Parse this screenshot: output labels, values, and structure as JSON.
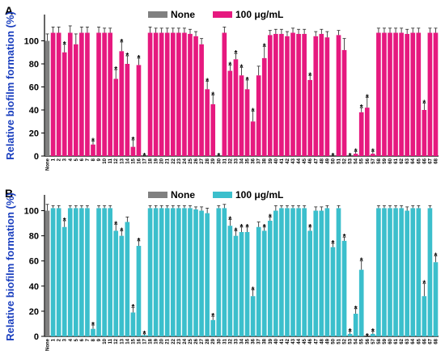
{
  "chart_data": [
    {
      "type": "bar",
      "panel_label": "A",
      "ylabel": "Relative biofilm formation (%)",
      "ylim": [
        0,
        120
      ],
      "yticks": [
        0,
        20,
        40,
        60,
        80,
        100
      ],
      "legend": [
        {
          "name": "None",
          "color": "#808080"
        },
        {
          "name": "100 μg/mL",
          "color": "#e6197f"
        }
      ],
      "legend_position": "top-center",
      "categories": [
        "None",
        "1",
        "2",
        "3",
        "4",
        "5",
        "6",
        "7",
        "8",
        "9",
        "10",
        "11",
        "12",
        "13",
        "14",
        "15",
        "16",
        "17",
        "18",
        "19",
        "20",
        "21",
        "22",
        "23",
        "24",
        "25",
        "26",
        "27",
        "28",
        "29",
        "30",
        "31",
        "32",
        "33",
        "34",
        "35",
        "36",
        "37",
        "38",
        "39",
        "40",
        "41",
        "42",
        "43",
        "44",
        "45",
        "46",
        "47",
        "48",
        "49",
        "50",
        "51",
        "52",
        "53",
        "54",
        "55",
        "56",
        "57",
        "58",
        "59",
        "60",
        "61",
        "62",
        "63",
        "64",
        "65",
        "66",
        "67",
        "68"
      ],
      "series": [
        {
          "name": "100 μg/mL",
          "color": "#e6197f",
          "values": [
            100,
            107,
            107,
            90,
            107,
            97,
            107,
            107,
            10,
            107,
            107,
            107,
            67,
            91,
            80,
            8,
            79,
            0,
            107,
            107,
            107,
            107,
            107,
            107,
            107,
            106,
            104,
            97,
            58,
            45,
            0,
            107,
            74,
            84,
            70,
            58,
            30,
            70,
            85,
            105,
            106,
            106,
            104,
            107,
            106,
            106,
            66,
            104,
            106,
            103,
            0,
            105,
            92,
            0,
            2,
            38,
            42,
            2,
            107,
            107,
            107,
            107,
            107,
            106,
            107,
            107,
            40,
            107,
            107
          ],
          "errors": [
            6,
            5,
            5,
            7,
            6,
            9,
            5,
            5,
            3,
            5,
            4,
            4,
            8,
            8,
            7,
            6,
            6,
            0,
            5,
            4,
            4,
            4,
            4,
            4,
            4,
            4,
            4,
            5,
            7,
            8,
            0,
            5,
            5,
            5,
            7,
            8,
            9,
            8,
            10,
            4,
            4,
            4,
            4,
            4,
            4,
            4,
            4,
            4,
            4,
            5,
            0,
            4,
            10,
            0,
            2,
            4,
            9,
            2,
            4,
            4,
            4,
            4,
            4,
            4,
            4,
            4,
            6,
            4,
            4
          ],
          "significant": [
            false,
            false,
            false,
            true,
            false,
            false,
            false,
            false,
            true,
            false,
            false,
            false,
            true,
            true,
            true,
            true,
            true,
            true,
            false,
            false,
            false,
            false,
            false,
            false,
            false,
            false,
            false,
            false,
            true,
            true,
            true,
            false,
            true,
            true,
            true,
            true,
            true,
            false,
            true,
            false,
            false,
            false,
            false,
            false,
            false,
            false,
            true,
            false,
            false,
            false,
            true,
            false,
            false,
            true,
            true,
            true,
            true,
            true,
            false,
            false,
            false,
            false,
            false,
            false,
            false,
            false,
            true,
            false,
            false
          ]
        }
      ]
    },
    {
      "type": "bar",
      "panel_label": "B",
      "ylabel": "Relative biofilm formation (%)",
      "ylim": [
        0,
        110
      ],
      "yticks": [
        0,
        20,
        40,
        60,
        80,
        100
      ],
      "legend": [
        {
          "name": "None",
          "color": "#808080"
        },
        {
          "name": "100 μg/mL",
          "color": "#3bbfcc"
        }
      ],
      "legend_position": "top-center",
      "categories": [
        "None",
        "1",
        "2",
        "3",
        "4",
        "5",
        "6",
        "7",
        "8",
        "9",
        "10",
        "11",
        "12",
        "13",
        "14",
        "15",
        "16",
        "17",
        "18",
        "19",
        "20",
        "21",
        "22",
        "23",
        "24",
        "25",
        "26",
        "27",
        "28",
        "29",
        "30",
        "31",
        "32",
        "33",
        "34",
        "35",
        "36",
        "37",
        "38",
        "39",
        "40",
        "41",
        "42",
        "43",
        "44",
        "45",
        "46",
        "47",
        "48",
        "49",
        "50",
        "51",
        "52",
        "53",
        "54",
        "55",
        "56",
        "57",
        "58",
        "59",
        "60",
        "61",
        "62",
        "63",
        "64",
        "65",
        "66",
        "67",
        "68"
      ],
      "series": [
        {
          "name": "100 μg/mL",
          "color": "#3bbfcc",
          "values": [
            100,
            102,
            102,
            87,
            102,
            102,
            102,
            102,
            6,
            102,
            102,
            102,
            84,
            80,
            91,
            19,
            72,
            1,
            102,
            102,
            102,
            102,
            102,
            102,
            102,
            102,
            101,
            100,
            98,
            13,
            102,
            102,
            88,
            80,
            83,
            83,
            32,
            87,
            84,
            92,
            100,
            102,
            102,
            102,
            102,
            102,
            84,
            100,
            100,
            102,
            71,
            102,
            76,
            2,
            18,
            53,
            0,
            2,
            102,
            102,
            102,
            102,
            102,
            100,
            102,
            102,
            32,
            102,
            59
          ],
          "errors": [
            5,
            2,
            2,
            5,
            2,
            2,
            2,
            2,
            3,
            2,
            2,
            2,
            5,
            4,
            4,
            4,
            4,
            1,
            2,
            2,
            2,
            2,
            2,
            2,
            2,
            2,
            2,
            3,
            4,
            3,
            2,
            3,
            5,
            4,
            4,
            4,
            5,
            4,
            3,
            3,
            4,
            2,
            2,
            2,
            2,
            2,
            3,
            3,
            3,
            2,
            3,
            2,
            3,
            2,
            4,
            7,
            0,
            2,
            2,
            2,
            2,
            2,
            2,
            3,
            2,
            2,
            10,
            2,
            5
          ],
          "significant": [
            false,
            false,
            false,
            true,
            false,
            false,
            false,
            false,
            true,
            false,
            false,
            false,
            true,
            true,
            false,
            true,
            true,
            true,
            false,
            false,
            false,
            false,
            false,
            false,
            false,
            false,
            false,
            false,
            false,
            true,
            false,
            false,
            true,
            true,
            true,
            true,
            true,
            false,
            true,
            true,
            false,
            false,
            false,
            false,
            false,
            false,
            true,
            false,
            false,
            false,
            true,
            false,
            true,
            true,
            true,
            true,
            true,
            true,
            false,
            false,
            false,
            false,
            false,
            false,
            false,
            false,
            true,
            false,
            true
          ]
        }
      ]
    }
  ]
}
